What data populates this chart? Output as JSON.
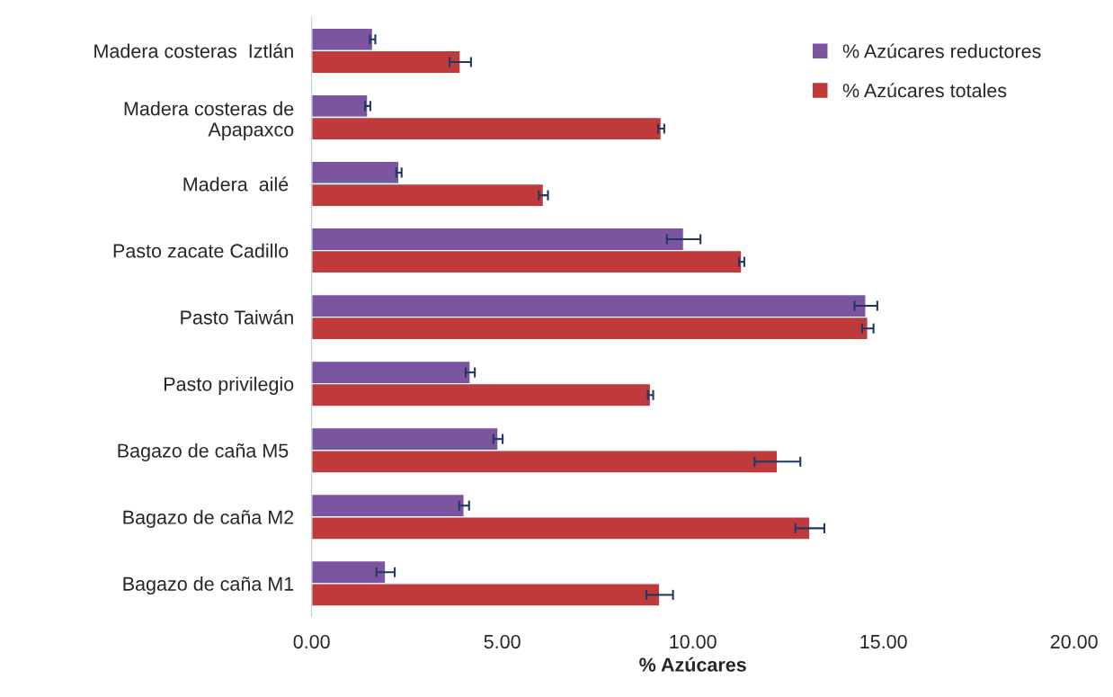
{
  "chart_data": {
    "type": "bar",
    "orientation": "horizontal",
    "xlabel": "% Azúcares",
    "categories": [
      "Madera costeras  Iztlán",
      "Madera costeras de\nApapaxco",
      "Madera  ailé ",
      "Pasto zacate Cadillo ",
      "Pasto Taiwán",
      "Pasto privilegio",
      "Bagazo de caña M5 ",
      "Bagazo de caña M2",
      "Bagazo de caña M1"
    ],
    "series": [
      {
        "name": "% Azúcares reductores",
        "color": "#7b55a0",
        "values": [
          1.6,
          1.47,
          2.29,
          9.76,
          14.54,
          4.16,
          4.89,
          4.0,
          1.94
        ],
        "errors": [
          0.07,
          0.07,
          0.07,
          0.44,
          0.3,
          0.12,
          0.12,
          0.13,
          0.24
        ]
      },
      {
        "name": "% Azúcares totales",
        "color": "#c0393b",
        "values": [
          3.9,
          9.17,
          6.08,
          11.28,
          14.59,
          8.89,
          12.22,
          13.07,
          9.13
        ],
        "errors": [
          0.28,
          0.08,
          0.12,
          0.07,
          0.15,
          0.07,
          0.6,
          0.38,
          0.35
        ]
      }
    ],
    "xlim": [
      0,
      20
    ],
    "xticks": [
      {
        "value": 0,
        "label": "0.00"
      },
      {
        "value": 5,
        "label": "5.00"
      },
      {
        "value": 10,
        "label": "10.00"
      },
      {
        "value": 15,
        "label": "15.00"
      },
      {
        "value": 20,
        "label": "20.00"
      }
    ],
    "grid": false,
    "legend": "top right"
  }
}
